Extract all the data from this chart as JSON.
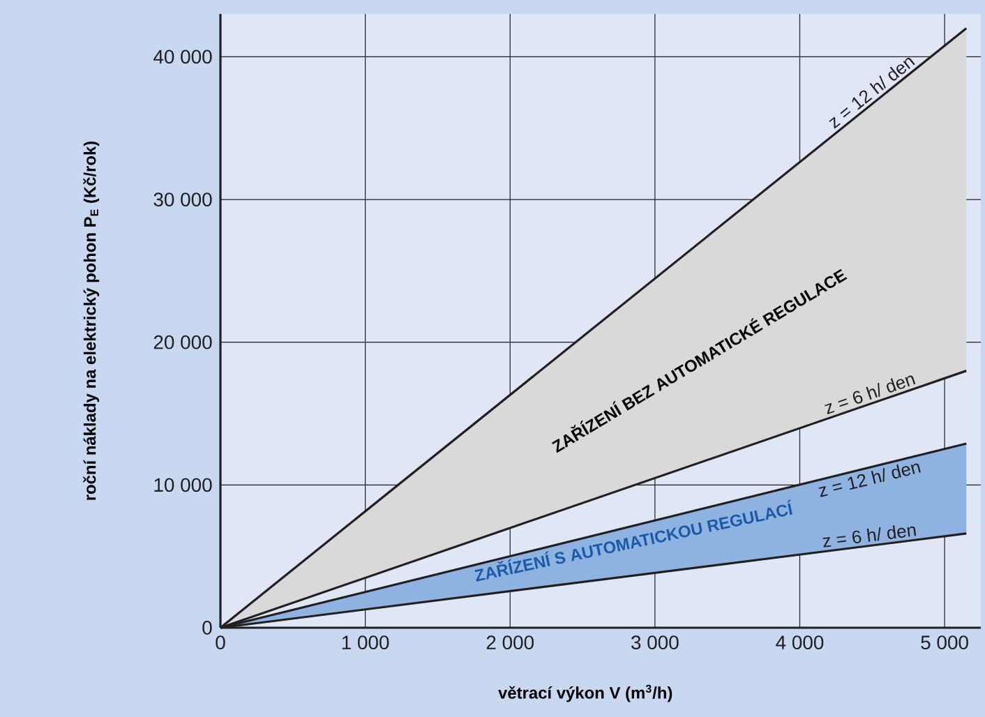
{
  "chart_data": {
    "type": "line",
    "xlabel": "větrací výkon V (m$^{3}$/h)",
    "ylabel": "roční náklady na elektrický pohon P$_{E}$ (Kč/rok)",
    "xlim": [
      0,
      5250
    ],
    "ylim": [
      0,
      43000
    ],
    "xticks": [
      0,
      {
        "value": 1000,
        "label": "1 000"
      },
      {
        "value": 2000,
        "label": "2 000"
      },
      {
        "value": 3000,
        "label": "3 000"
      },
      {
        "value": 4000,
        "label": "4 000"
      },
      {
        "value": 5000,
        "label": "5 000"
      }
    ],
    "yticks": [
      0,
      {
        "value": 10000,
        "label": "10 000"
      },
      {
        "value": 20000,
        "label": "20 000"
      },
      {
        "value": 30000,
        "label": "30 000"
      },
      {
        "value": 40000,
        "label": "40 000"
      }
    ],
    "x": [
      0,
      5150
    ],
    "grid": true,
    "marker": "none",
    "line_style": "solid",
    "series": [
      {
        "name": "z = 12 h/ den",
        "color": "#231f20",
        "values": [
          0,
          42000
        ],
        "lower": [
          0,
          18000
        ],
        "upper": [
          0,
          42000
        ]
      },
      {
        "name": "z = 6 h/ den",
        "color": "#231f20",
        "values": [
          0,
          18000
        ]
      },
      {
        "name": "z = 12 h/ den",
        "color": "#231f20",
        "values": [
          0,
          12900
        ],
        "lower": [
          0,
          6600
        ],
        "upper": [
          0,
          12900
        ]
      },
      {
        "name": "z = 6 h/ den",
        "color": "#231f20",
        "values": [
          0,
          6600
        ]
      }
    ],
    "annotations": [
      "ZAŘÍZENÍ BEZ AUTOMATICKÉ REGULACE",
      "ZAŘÍZENÍ S AUTOMATICKOU REGULACÍ"
    ]
  }
}
